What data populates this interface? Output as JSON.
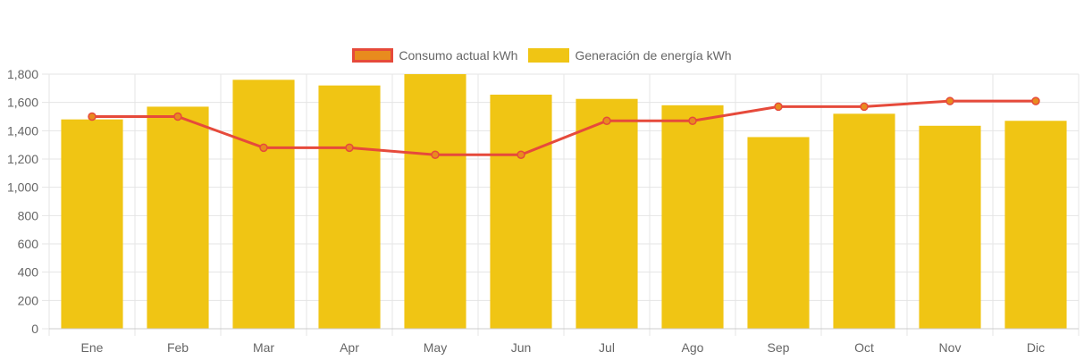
{
  "colors": {
    "bar_fill": "#f0c514",
    "line_stroke": "#e64a3b",
    "line_point_fill": "#e88b1e",
    "grid": "#e5e5e5",
    "axis_text": "#666666"
  },
  "chart_data": {
    "type": "bar",
    "categories": [
      "Ene",
      "Feb",
      "Mar",
      "Apr",
      "May",
      "Jun",
      "Jul",
      "Ago",
      "Sep",
      "Oct",
      "Nov",
      "Dic"
    ],
    "series": [
      {
        "name": "Consumo actual kWh",
        "type": "line",
        "values": [
          1500,
          1500,
          1280,
          1280,
          1230,
          1230,
          1470,
          1470,
          1570,
          1570,
          1610,
          1610
        ]
      },
      {
        "name": "Generación de energía kWh",
        "type": "bar",
        "values": [
          1480,
          1570,
          1760,
          1720,
          1800,
          1655,
          1625,
          1580,
          1355,
          1520,
          1435,
          1470
        ]
      }
    ],
    "ylim": [
      0,
      1800
    ],
    "yticks": [
      "0",
      "200",
      "400",
      "600",
      "800",
      "1,000",
      "1,200",
      "1,400",
      "1,600",
      "1,800"
    ],
    "ytick_values": [
      0,
      200,
      400,
      600,
      800,
      1000,
      1200,
      1400,
      1600,
      1800
    ],
    "grid": true,
    "legend_position": "top-center",
    "title": "",
    "xlabel": "",
    "ylabel": ""
  }
}
